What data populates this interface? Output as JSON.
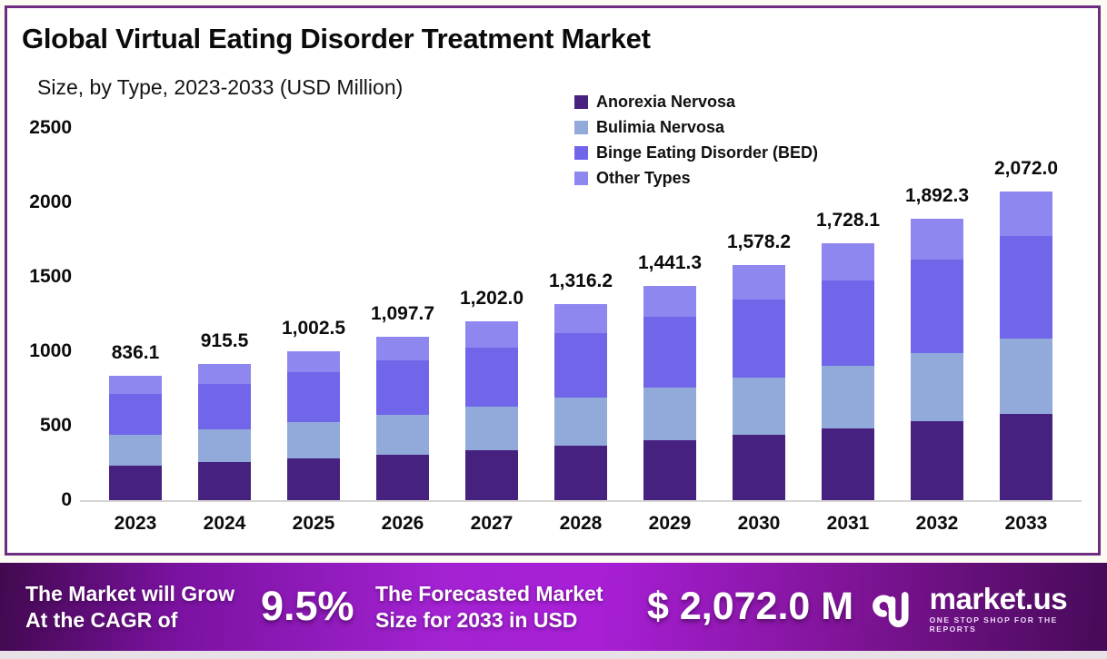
{
  "page": {
    "title": "Global Virtual Eating Disorder Treatment Market",
    "subtitle": "Size, by Type, 2023-2033 (USD Million)"
  },
  "legend": [
    {
      "label": "Anorexia Nervosa",
      "color": "#472180"
    },
    {
      "label": "Bulimia Nervosa",
      "color": "#92aad9"
    },
    {
      "label": "Binge Eating Disorder (BED)",
      "color": "#7165ea"
    },
    {
      "label": "Other Types",
      "color": "#8e87f0"
    }
  ],
  "chart_data": {
    "type": "bar",
    "stacked": true,
    "title": "Global Virtual Eating Disorder Treatment Market",
    "subtitle": "Size, by Type, 2023-2033 (USD Million)",
    "unit": "USD Million",
    "categories": [
      "2023",
      "2024",
      "2025",
      "2026",
      "2027",
      "2028",
      "2029",
      "2030",
      "2031",
      "2032",
      "2033"
    ],
    "series": [
      {
        "name": "Anorexia Nervosa",
        "color": "#472180",
        "values": [
          234.1,
          256.3,
          280.7,
          307.4,
          336.6,
          368.5,
          403.6,
          441.9,
          483.9,
          529.8,
          580.2
        ]
      },
      {
        "name": "Bulimia Nervosa",
        "color": "#92aad9",
        "values": [
          203.2,
          222.5,
          243.6,
          266.7,
          292.1,
          319.8,
          350.2,
          383.5,
          419.9,
          459.8,
          503.5
        ]
      },
      {
        "name": "Binge Eating Disorder (BED)",
        "color": "#7165ea",
        "values": [
          277.6,
          303.9,
          332.8,
          364.4,
          399.0,
          437.0,
          478.5,
          524.0,
          573.7,
          628.2,
          687.9
        ]
      },
      {
        "name": "Other Types",
        "color": "#8e87f0",
        "values": [
          121.2,
          132.8,
          145.4,
          159.2,
          174.3,
          190.9,
          209.0,
          228.8,
          250.6,
          274.5,
          300.4
        ]
      }
    ],
    "totals": [
      836.1,
      915.5,
      1002.5,
      1097.7,
      1202.0,
      1316.2,
      1441.3,
      1578.2,
      1728.1,
      1892.3,
      2072.0
    ],
    "totals_formatted": [
      "836.1",
      "915.5",
      "1,002.5",
      "1,097.7",
      "1,202.0",
      "1,316.2",
      "1,441.3",
      "1,578.2",
      "1,728.1",
      "1,892.3",
      "2,072.0"
    ],
    "xlabel": "",
    "ylabel": "",
    "ylim": [
      0,
      2500
    ],
    "yticks": [
      0,
      500,
      1000,
      1500,
      2000,
      2500
    ],
    "grid": false,
    "legend_position": "top-right"
  },
  "banner": {
    "cagr_label_line1": "The Market will Grow",
    "cagr_label_line2": "At the CAGR of",
    "cagr_value": "9.5%",
    "forecast_label_line1": "The Forecasted Market",
    "forecast_label_line2": "Size for 2033 in USD",
    "forecast_value": "$ 2,072.0 M",
    "logo_text": "market.us",
    "logo_tagline": "ONE STOP SHOP FOR THE REPORTS"
  },
  "colors": {
    "card_border": "#6d2c80",
    "banner_gradient_mid": "#a81fd6",
    "banner_gradient_edge": "#42094f",
    "axis_baseline": "#d7d4d4",
    "text": "#0c0c0c"
  }
}
